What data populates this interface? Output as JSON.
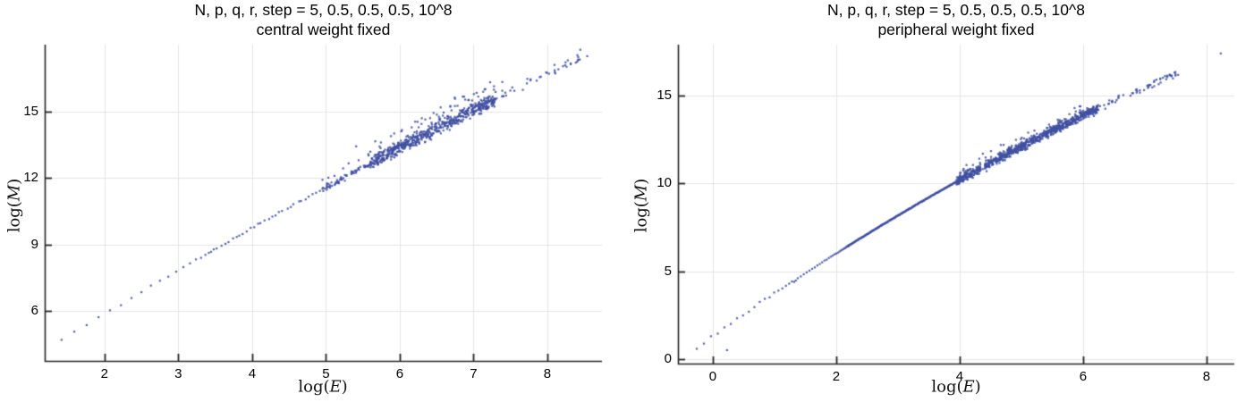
{
  "figure": {
    "background": "#ffffff"
  },
  "chart_data": [
    {
      "type": "scatter",
      "title_line1": "N, p, q, r, step = 5, 0.5, 0.5, 0.5, 10^8",
      "title_line2": "central weight fixed",
      "xlabel": {
        "prefix": "log(",
        "var": "E",
        "suffix": ")"
      },
      "ylabel": {
        "prefix": "log(",
        "var": "M",
        "suffix": ")"
      },
      "x_ticks": [
        2,
        3,
        4,
        5,
        6,
        7,
        8
      ],
      "y_ticks": [
        6,
        9,
        12,
        15
      ],
      "x_range": [
        1.19,
        8.74
      ],
      "y_range": [
        3.74,
        18.02
      ],
      "x_extent": [
        1.33,
        8.54
      ],
      "y_extent": [
        4.4,
        17.6
      ],
      "grid": true,
      "legend": "none",
      "point_color": "#3f4fa0",
      "grid_color": "#e4e4e4",
      "axis_color": "#242424",
      "trend_curve": {
        "a": 1.714,
        "b": 2.139,
        "c": -0.0332
      },
      "seed": 11,
      "segments": [
        {
          "x0": 1.33,
          "x1": 3.45,
          "n": 19,
          "spread": 0.05,
          "spacing": "accel",
          "accel": 1.6
        },
        {
          "x0": 3.45,
          "x1": 4.95,
          "n": 30,
          "spread": 0.045,
          "spacing": "even"
        },
        {
          "x0": 4.95,
          "x1": 5.6,
          "n": 75,
          "spread": 0.1,
          "spacing": "random",
          "skew_p": 0.12,
          "skew_amp": 0.6
        },
        {
          "x0": 5.6,
          "x1": 7.3,
          "n": 620,
          "spread": 0.26,
          "spacing": "random",
          "skew_p": 0.15,
          "skew_amp": 0.85
        },
        {
          "x0": 7.3,
          "x1": 8.45,
          "n": 42,
          "spread": 0.2,
          "spacing": "random",
          "skew_p": 0.1,
          "skew_amp": 0.5
        }
      ],
      "outliers": [
        [
          5.41,
          13.43
        ],
        [
          8.54,
          17.5
        ]
      ]
    },
    {
      "type": "scatter",
      "title_line1": "N, p, q, r, step = 5, 0.5, 0.5, 0.5, 10^8",
      "title_line2": "peripheral weight fixed",
      "xlabel": {
        "prefix": "log(",
        "var": "E",
        "suffix": ")"
      },
      "ylabel": {
        "prefix": "log(",
        "var": "M",
        "suffix": ")"
      },
      "x_ticks": [
        0,
        2,
        4,
        6,
        8
      ],
      "y_ticks": [
        0,
        5,
        10,
        15
      ],
      "x_range": [
        -0.565,
        8.45
      ],
      "y_range": [
        -0.254,
        17.9
      ],
      "x_extent": [
        -0.32,
        8.23
      ],
      "y_extent": [
        0.2,
        17.4
      ],
      "grid": true,
      "legend": "none",
      "point_color": "#3f4fa0",
      "grid_color": "#e4e4e4",
      "axis_color": "#242424",
      "trend_curve": {
        "a": 1.306,
        "b": 2.488,
        "c": -0.0662
      },
      "seed": 23,
      "segments": [
        {
          "x0": -0.32,
          "x1": 1.35,
          "n": 21,
          "spread": 0.08,
          "spacing": "accel",
          "accel": 1.5
        },
        {
          "x0": 1.35,
          "x1": 2.2,
          "n": 30,
          "spread": 0.02,
          "spacing": "accel",
          "accel": 1.8
        },
        {
          "x0": 2.2,
          "x1": 3.95,
          "n": 210,
          "spread": 0.018,
          "spacing": "even"
        },
        {
          "x0": 3.95,
          "x1": 6.25,
          "n": 820,
          "spread": 0.21,
          "spacing": "random",
          "skew_p": 0.12,
          "skew_amp": 0.55
        },
        {
          "x0": 6.25,
          "x1": 7.55,
          "n": 56,
          "spread": 0.2,
          "spacing": "random"
        }
      ],
      "outliers": [
        [
          0.23,
          0.51
        ],
        [
          8.23,
          17.4
        ]
      ]
    }
  ]
}
